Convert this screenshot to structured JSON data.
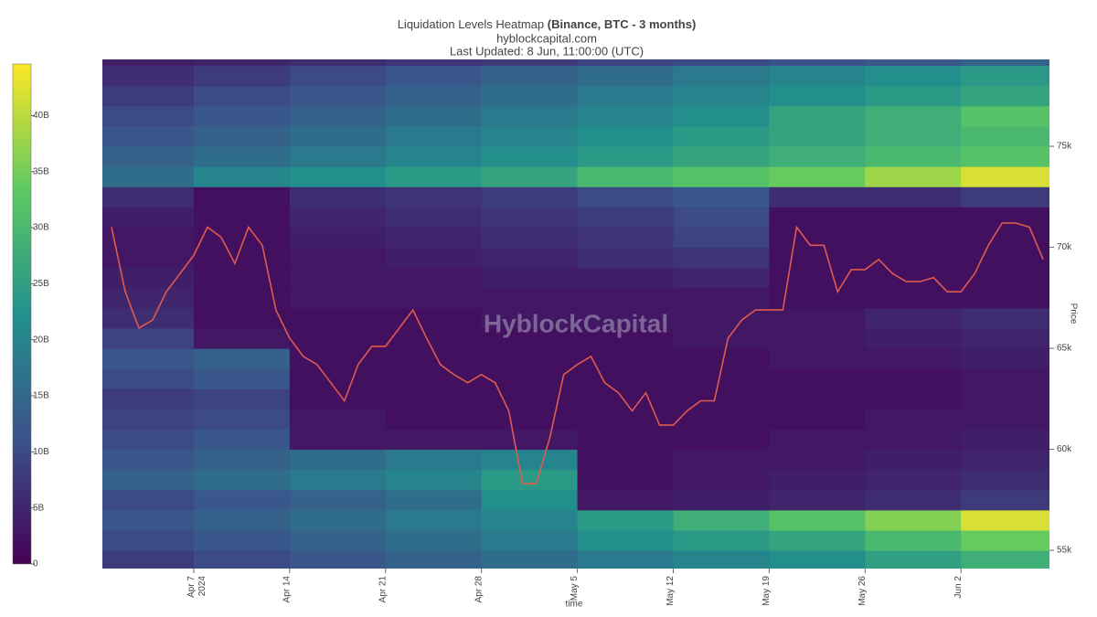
{
  "chart_data": {
    "type": "heatmap",
    "title": "Liquidation Levels Heatmap",
    "title_emphasis": "(Binance, BTC - 3 months)",
    "subtitle": "hyblockcapital.com",
    "updated": "Last Updated: 8 Jun, 11:00:00 (UTC)",
    "watermark": "HyblockCapital",
    "xlabel": "time",
    "ylabel": "Price",
    "xlim": [
      "2024-03-31T08:00",
      "2024-06-08T11:00"
    ],
    "ylim": [
      54100,
      79300
    ],
    "xticks": [
      {
        "value": "2024-04-07",
        "label": "Apr 7\n2024"
      },
      {
        "value": "2024-04-14",
        "label": "Apr 14"
      },
      {
        "value": "2024-04-21",
        "label": "Apr 21"
      },
      {
        "value": "2024-04-28",
        "label": "Apr 28"
      },
      {
        "value": "2024-05-05",
        "label": "May 5"
      },
      {
        "value": "2024-05-12",
        "label": "May 12"
      },
      {
        "value": "2024-05-19",
        "label": "May 19"
      },
      {
        "value": "2024-05-26",
        "label": "May 26"
      },
      {
        "value": "2024-06-02",
        "label": "Jun 2"
      }
    ],
    "yticks": [
      {
        "value": 55000,
        "label": "55k"
      },
      {
        "value": 60000,
        "label": "60k"
      },
      {
        "value": 65000,
        "label": "65k"
      },
      {
        "value": 70000,
        "label": "70k"
      },
      {
        "value": 75000,
        "label": "75k"
      }
    ],
    "colorscale": [
      "#440154",
      "#3b528b",
      "#21918c",
      "#5ec962",
      "#fde725"
    ],
    "zlim": [
      0,
      44.6
    ],
    "zticks": [
      0,
      {
        "value": 5,
        "label": "5B"
      },
      {
        "value": 10,
        "label": "10B"
      },
      {
        "value": 15,
        "label": "15B"
      },
      {
        "value": 20,
        "label": "20B"
      },
      {
        "value": 25,
        "label": "25B"
      },
      {
        "value": 30,
        "label": "30B"
      },
      {
        "value": 35,
        "label": "35B"
      },
      {
        "value": 40,
        "label": "40B"
      }
    ],
    "xbins": [
      "2024-03-31T08:00",
      "2024-04-07",
      "2024-04-14",
      "2024-04-21",
      "2024-04-28",
      "2024-05-05",
      "2024-05-12",
      "2024-05-19",
      "2024-05-26",
      "2024-06-02",
      "2024-06-08T11:00"
    ],
    "ybins": [
      54000,
      55000,
      56000,
      57000,
      58000,
      59000,
      60000,
      61000,
      62000,
      63000,
      64000,
      65000,
      66000,
      67000,
      68000,
      69000,
      70000,
      71000,
      72000,
      73000,
      74000,
      75000,
      76000,
      77000,
      78000,
      79000,
      79300
    ],
    "z": [
      [
        8,
        10,
        12,
        14,
        16,
        18,
        20,
        22,
        25,
        28
      ],
      [
        10,
        12,
        14,
        16,
        18,
        22,
        24,
        26,
        30,
        34
      ],
      [
        12,
        14,
        16,
        18,
        20,
        24,
        28,
        32,
        36,
        42
      ],
      [
        10,
        12,
        14,
        16,
        22,
        3,
        4,
        5,
        6,
        8
      ],
      [
        14,
        16,
        18,
        20,
        24,
        2,
        3,
        4,
        5,
        6
      ],
      [
        12,
        14,
        16,
        18,
        20,
        2,
        3,
        3,
        4,
        5
      ],
      [
        10,
        12,
        3,
        3,
        3,
        2,
        2,
        3,
        3,
        4
      ],
      [
        9,
        10,
        3,
        2,
        2,
        2,
        2,
        2,
        3,
        3
      ],
      [
        8,
        9,
        2,
        2,
        2,
        2,
        2,
        2,
        2,
        3
      ],
      [
        10,
        12,
        2,
        2,
        2,
        2,
        2,
        2,
        2,
        3
      ],
      [
        12,
        14,
        2,
        2,
        2,
        2,
        2,
        3,
        3,
        4
      ],
      [
        9,
        3,
        2,
        2,
        2,
        2,
        3,
        3,
        4,
        5
      ],
      [
        6,
        2,
        2,
        2,
        3,
        3,
        3,
        3,
        5,
        6
      ],
      [
        5,
        2,
        3,
        3,
        3,
        3,
        3,
        2,
        2,
        2
      ],
      [
        4,
        2,
        3,
        3,
        4,
        4,
        5,
        2,
        2,
        2
      ],
      [
        3,
        2,
        3,
        4,
        5,
        6,
        7,
        2,
        2,
        2
      ],
      [
        3,
        2,
        4,
        5,
        6,
        7,
        9,
        2,
        2,
        2
      ],
      [
        4,
        2,
        5,
        6,
        7,
        8,
        10,
        2,
        2,
        2
      ],
      [
        6,
        2,
        6,
        7,
        8,
        10,
        12,
        6,
        6,
        8
      ],
      [
        16,
        20,
        22,
        24,
        26,
        30,
        32,
        34,
        38,
        42
      ],
      [
        14,
        16,
        18,
        20,
        22,
        24,
        26,
        28,
        30,
        32
      ],
      [
        12,
        14,
        16,
        18,
        20,
        22,
        24,
        26,
        28,
        30
      ],
      [
        10,
        12,
        14,
        16,
        18,
        20,
        22,
        26,
        28,
        32
      ],
      [
        8,
        10,
        12,
        14,
        16,
        18,
        20,
        22,
        24,
        26
      ],
      [
        6,
        8,
        10,
        12,
        14,
        16,
        18,
        20,
        22,
        24
      ],
      [
        4,
        5,
        6,
        7,
        8,
        9,
        10,
        11,
        12,
        14
      ]
    ],
    "price": {
      "color": "#e05a4f",
      "x": [
        "2024-04-01",
        "2024-04-02",
        "2024-04-03",
        "2024-04-04",
        "2024-04-05",
        "2024-04-06",
        "2024-04-07",
        "2024-04-08",
        "2024-04-09",
        "2024-04-10",
        "2024-04-11",
        "2024-04-12",
        "2024-04-13",
        "2024-04-14",
        "2024-04-15",
        "2024-04-16",
        "2024-04-17",
        "2024-04-18",
        "2024-04-19",
        "2024-04-20",
        "2024-04-21",
        "2024-04-22",
        "2024-04-23",
        "2024-04-24",
        "2024-04-25",
        "2024-04-26",
        "2024-04-27",
        "2024-04-28",
        "2024-04-29",
        "2024-04-30",
        "2024-05-01",
        "2024-05-02",
        "2024-05-03",
        "2024-05-04",
        "2024-05-05",
        "2024-05-06",
        "2024-05-07",
        "2024-05-08",
        "2024-05-09",
        "2024-05-10",
        "2024-05-11",
        "2024-05-12",
        "2024-05-13",
        "2024-05-14",
        "2024-05-15",
        "2024-05-16",
        "2024-05-17",
        "2024-05-18",
        "2024-05-19",
        "2024-05-20",
        "2024-05-21",
        "2024-05-22",
        "2024-05-23",
        "2024-05-24",
        "2024-05-25",
        "2024-05-26",
        "2024-05-27",
        "2024-05-28",
        "2024-05-29",
        "2024-05-30",
        "2024-05-31",
        "2024-06-01",
        "2024-06-02",
        "2024-06-03",
        "2024-06-04",
        "2024-06-05",
        "2024-06-06",
        "2024-06-07",
        "2024-06-08"
      ],
      "values": [
        71000,
        67800,
        66000,
        66400,
        67800,
        68700,
        69600,
        71000,
        70500,
        69200,
        71000,
        70100,
        66900,
        65500,
        64600,
        64200,
        63300,
        62400,
        64200,
        65100,
        65100,
        66000,
        66900,
        65500,
        64200,
        63700,
        63300,
        63700,
        63300,
        61900,
        58300,
        58300,
        60600,
        63700,
        64200,
        64600,
        63300,
        62800,
        61900,
        62800,
        61200,
        61200,
        61900,
        62400,
        62400,
        65500,
        66400,
        66900,
        66900,
        66900,
        71000,
        70100,
        70100,
        67800,
        68900,
        68900,
        69400,
        68700,
        68300,
        68300,
        68500,
        67800,
        67800,
        68700,
        70100,
        71200,
        71200,
        71000,
        69400
      ]
    }
  }
}
